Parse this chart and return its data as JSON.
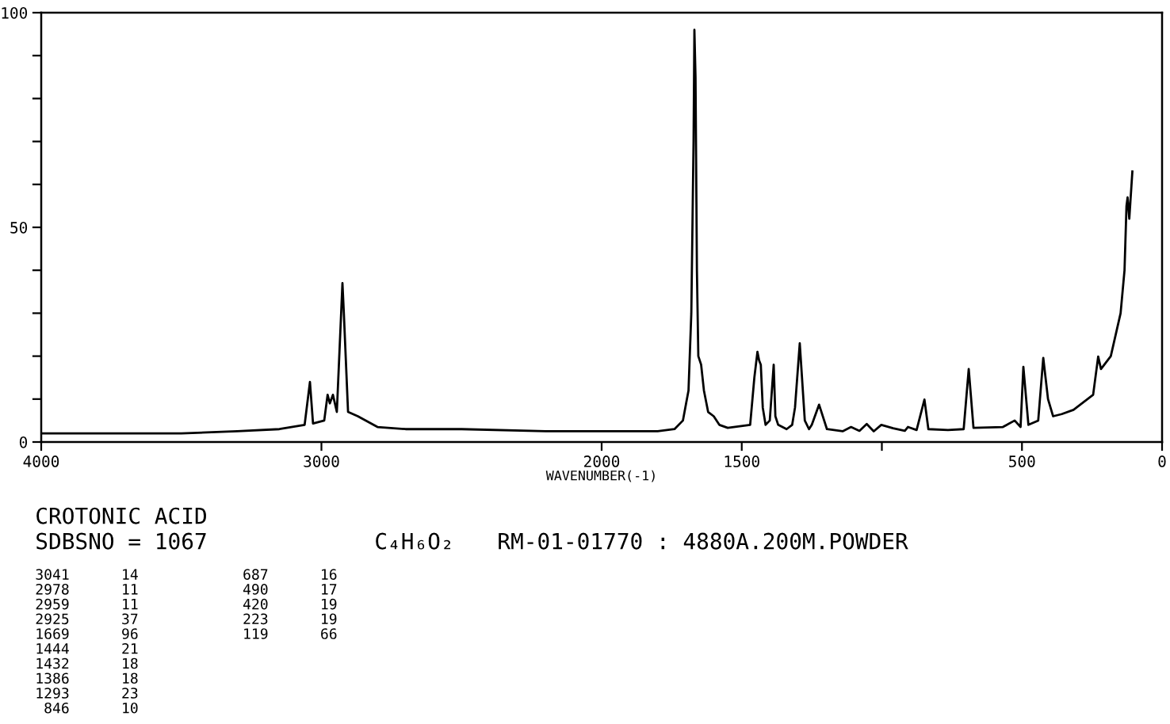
{
  "chart_data": {
    "type": "line",
    "xlabel": "WAVENUMBER(-1)",
    "x": [
      4000,
      3500,
      3300,
      3150,
      3060,
      3041,
      3030,
      2990,
      2978,
      2970,
      2959,
      2945,
      2925,
      2920,
      2905,
      2870,
      2800,
      2700,
      2500,
      2200,
      1900,
      1800,
      1740,
      1710,
      1690,
      1680,
      1672,
      1669,
      1665,
      1660,
      1655,
      1645,
      1635,
      1620,
      1600,
      1580,
      1550,
      1470,
      1455,
      1444,
      1438,
      1432,
      1425,
      1415,
      1400,
      1386,
      1380,
      1370,
      1340,
      1320,
      1310,
      1293,
      1285,
      1275,
      1260,
      1250,
      1224,
      1196,
      1140,
      1110,
      1080,
      1054,
      1029,
      1002,
      960,
      918,
      907,
      876,
      848,
      834,
      764,
      708,
      690,
      673,
      568,
      526,
      505,
      495,
      477,
      442,
      424,
      407,
      389,
      358,
      316,
      246,
      228,
      218,
      183,
      148,
      134,
      127,
      123,
      117,
      106
    ],
    "values": [
      2,
      2,
      2.5,
      3,
      4,
      14,
      4.3,
      5,
      11,
      9,
      11,
      7,
      37,
      30,
      7,
      6,
      3.5,
      3,
      3,
      2.5,
      2.5,
      2.5,
      3,
      5,
      12,
      30,
      70,
      96,
      85,
      40,
      20,
      18,
      12,
      7,
      6,
      4,
      3.3,
      4,
      15,
      21,
      19,
      18,
      8,
      4,
      5,
      18,
      6,
      4,
      3,
      4,
      8,
      23,
      15,
      5,
      3,
      4,
      8.7,
      3,
      2.5,
      3.5,
      2.6,
      4.2,
      2.5,
      4,
      3.2,
      2.6,
      3.5,
      2.8,
      9.9,
      3,
      2.8,
      3,
      17,
      3.3,
      3.5,
      5,
      3.5,
      17.5,
      4,
      5,
      19.6,
      10,
      6,
      6.5,
      7.5,
      11,
      19.9,
      17,
      20,
      30,
      40,
      55,
      57,
      52,
      63
    ],
    "color": "#000000",
    "xlim": [
      4000,
      0
    ],
    "xticks": [
      4000,
      3000,
      2000,
      1500,
      {
        "value": 1000,
        "label": null
      },
      500,
      0
    ],
    "ylim": [
      0,
      100
    ],
    "yticks": [
      0,
      {
        "value": 10,
        "label": null
      },
      {
        "value": 20,
        "label": null
      },
      {
        "value": 30,
        "label": null
      },
      {
        "value": 40,
        "label": null
      },
      50,
      {
        "value": 60,
        "label": null
      },
      {
        "value": 70,
        "label": null
      },
      {
        "value": 80,
        "label": null
      },
      {
        "value": 90,
        "label": null
      },
      100
    ],
    "grid": false,
    "legend": false,
    "annotations": [
      "CROTONIC ACID",
      "SDBSNO = 1067",
      "C₄H₆O₂",
      "RM-01-01770 : 4880A.200M.POWDER",
      "3041  14",
      "2978  11",
      "2959  11",
      "2925  37",
      "1669  96",
      "1444  21",
      "1432  18",
      "1386  18",
      "1293  23",
      " 846  10",
      " 687  16",
      " 490  17",
      " 420  19",
      " 223  19",
      " 119  66"
    ]
  }
}
